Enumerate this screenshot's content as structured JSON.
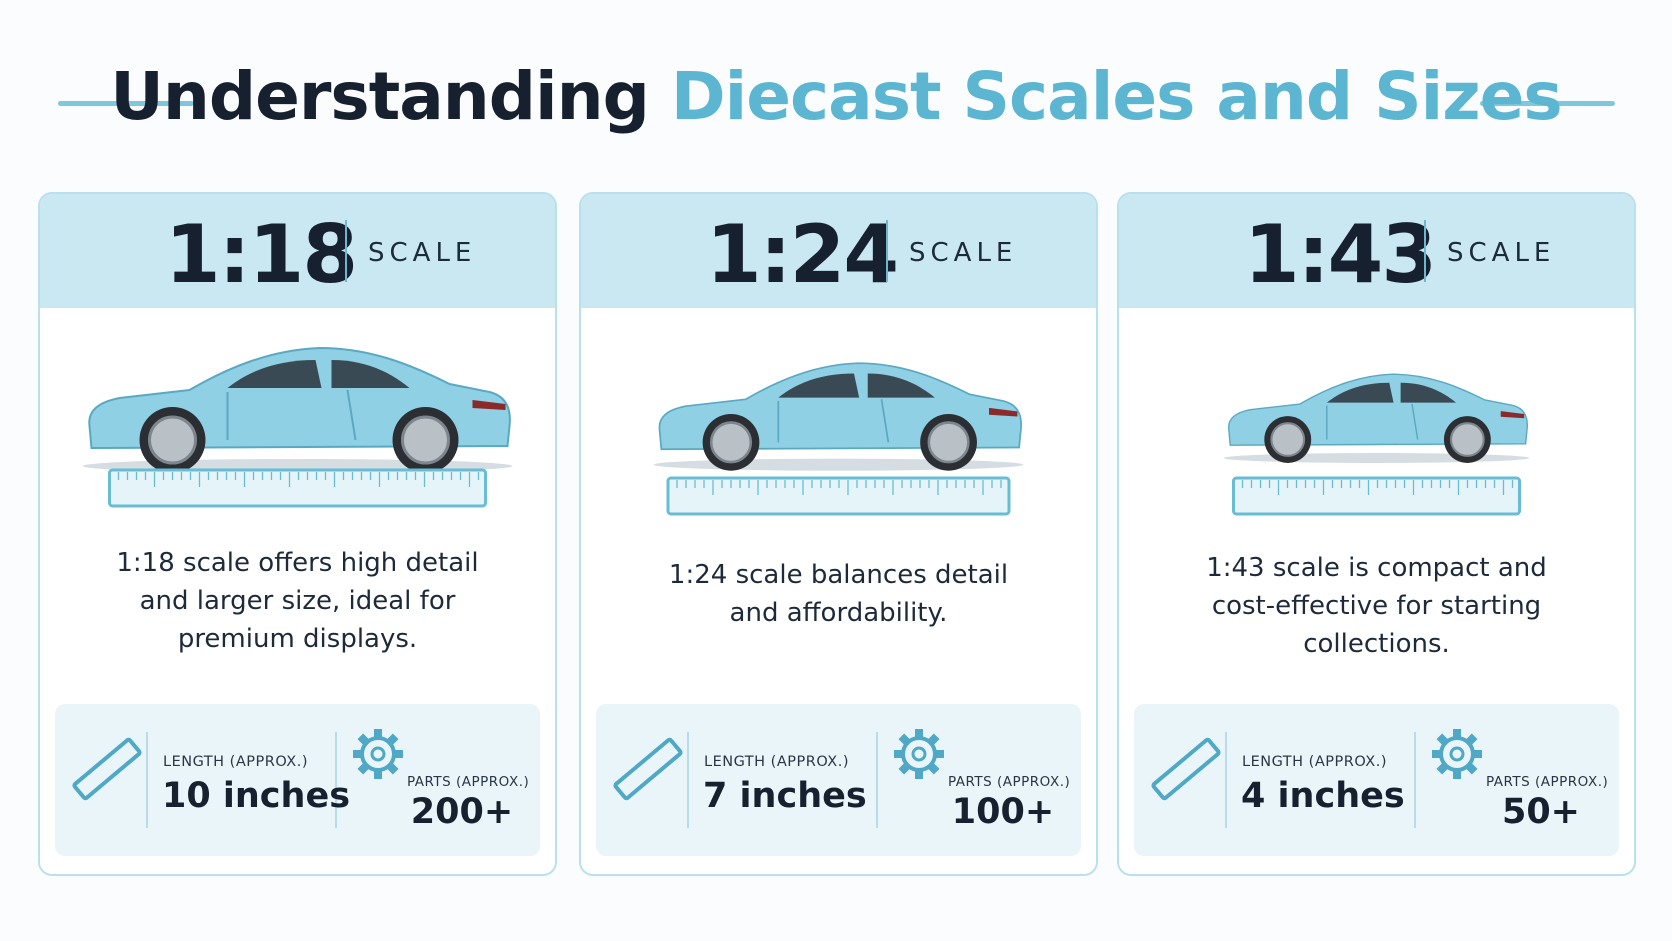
{
  "header": {
    "title_dark": "Understanding",
    "title_accent": "Diecast Scales and Sizes"
  },
  "cards": [
    {
      "scale": "1:18",
      "scale_word": "SCALE",
      "description": "1:18 scale offers high detail and larger size, ideal for premium displays.",
      "length_label": "LENGTH (APPROX.)",
      "length_value": "10 inches",
      "parts_label": "PARTS (APPROX.)",
      "parts_value": "200+"
    },
    {
      "scale": "1:24",
      "scale_word": "SCALE",
      "description": "1:24 scale balances detail and affordability.",
      "length_label": "LENGTH (APPROX.)",
      "length_value": "7 inches",
      "parts_label": "PARTS (APPROX.)",
      "parts_value": "100+"
    },
    {
      "scale": "1:43",
      "scale_word": "SCALE",
      "description": "1:43 scale is compact and cost-effective for starting collections.",
      "length_label": "LENGTH (APPROX.)",
      "length_value": "4 inches",
      "parts_label": "PARTS (APPROX.)",
      "parts_value": "50+"
    }
  ]
}
